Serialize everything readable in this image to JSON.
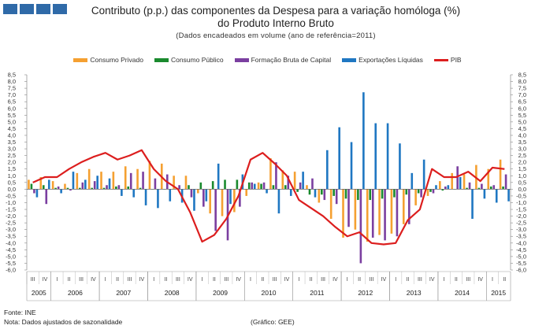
{
  "header": {
    "title_line1": "Contributo (p.p.) das componentes da Despesa para a variação homóloga (%)",
    "title_line2": "do Produto Interno Bruto",
    "subtitle": "(Dados encadeados em volume (ano de referência=2011)"
  },
  "footer": {
    "source": "Fonte:  INE",
    "note": "Nota: Dados ajustados de sazonalidade",
    "credit": "(Gráfico: GEE)"
  },
  "colors": {
    "logo": "#2f6aa8",
    "consumo_privado": "#f5a031",
    "consumo_publico": "#1a8a2e",
    "fbc": "#7b3fa0",
    "exportacoes": "#1f77c2",
    "pib": "#dc1e1e"
  },
  "chart_data": {
    "type": "bar",
    "title": "Contributo (p.p.) das componentes da Despesa para a variação homóloga (%) do Produto Interno Bruto",
    "ylim": [
      -6.0,
      8.5
    ],
    "ytick_step": 0.5,
    "legend_position": "top",
    "grid": false,
    "quarters": [
      "III",
      "IV",
      "I",
      "II",
      "III",
      "IV",
      "I",
      "II",
      "III",
      "IV",
      "I",
      "II",
      "III",
      "IV",
      "I",
      "II",
      "III",
      "IV",
      "I",
      "II",
      "III",
      "IV",
      "I",
      "II",
      "III",
      "IV",
      "I",
      "II",
      "III",
      "IV",
      "I",
      "II",
      "III",
      "IV",
      "I",
      "II",
      "III",
      "IV",
      "I",
      "II"
    ],
    "years": [
      {
        "label": "2005",
        "start": 0,
        "count": 2
      },
      {
        "label": "2006",
        "start": 2,
        "count": 4
      },
      {
        "label": "2007",
        "start": 6,
        "count": 4
      },
      {
        "label": "2008",
        "start": 10,
        "count": 4
      },
      {
        "label": "2009",
        "start": 14,
        "count": 4
      },
      {
        "label": "2010",
        "start": 18,
        "count": 4
      },
      {
        "label": "2011",
        "start": 22,
        "count": 4
      },
      {
        "label": "2012",
        "start": 26,
        "count": 4
      },
      {
        "label": "2013",
        "start": 30,
        "count": 4
      },
      {
        "label": "2014",
        "start": 34,
        "count": 4
      },
      {
        "label": "2015",
        "start": 38,
        "count": 2
      }
    ],
    "series": [
      {
        "name": "Consumo Privado",
        "type": "bar",
        "color": "#f5a031",
        "values": [
          0.7,
          0.9,
          0.6,
          0.4,
          1.2,
          1.5,
          1.3,
          1.3,
          1.7,
          1.5,
          2.1,
          1.9,
          1.0,
          1.0,
          -0.3,
          -1.8,
          -2.0,
          -1.7,
          -0.5,
          0.5,
          2.3,
          1.4,
          1.3,
          0.3,
          -1.0,
          -2.2,
          -3.6,
          -3.0,
          -3.9,
          -3.4,
          -3.3,
          -2.6,
          -1.2,
          -0.5,
          0.6,
          1.2,
          1.1,
          1.8,
          1.5,
          2.2
        ]
      },
      {
        "name": "Consumo Público",
        "type": "bar",
        "color": "#1a8a2e",
        "values": [
          0.4,
          0.3,
          0.1,
          0.1,
          0.1,
          0.1,
          0.1,
          0.2,
          0.2,
          0.1,
          0.0,
          0.0,
          0.1,
          0.3,
          0.5,
          0.6,
          0.7,
          0.7,
          0.5,
          0.4,
          0.3,
          0.3,
          -0.2,
          -0.4,
          -0.4,
          -0.5,
          -0.7,
          -0.8,
          -0.8,
          -0.7,
          -0.6,
          -0.4,
          -0.3,
          -0.2,
          -0.1,
          0.0,
          0.1,
          0.1,
          0.2,
          0.2
        ]
      },
      {
        "name": "Formação Bruta de Capital",
        "type": "bar",
        "color": "#7b3fa0",
        "values": [
          -0.3,
          -1.1,
          0.2,
          -0.1,
          0.5,
          0.6,
          0.3,
          0.3,
          1.2,
          1.3,
          0.8,
          1.1,
          0.3,
          -0.6,
          -1.3,
          -3.1,
          -3.8,
          -1.3,
          0.5,
          0.5,
          2.0,
          1.0,
          0.5,
          0.8,
          -0.8,
          -1.1,
          -2.8,
          -5.5,
          -3.6,
          -3.8,
          -3.5,
          -2.6,
          -0.6,
          -0.3,
          0.2,
          1.7,
          0.5,
          0.4,
          0.3,
          1.1
        ]
      },
      {
        "name": "Exportações Líquidas",
        "type": "bar",
        "color": "#1f77c2",
        "values": [
          -0.6,
          0.7,
          -0.3,
          1.3,
          0.7,
          1.0,
          0.8,
          -0.5,
          -0.6,
          -1.2,
          -1.4,
          -0.9,
          -1.0,
          -1.6,
          -0.9,
          1.9,
          -1.1,
          1.1,
          0.4,
          -0.3,
          -1.8,
          -0.5,
          1.3,
          -0.6,
          2.9,
          4.6,
          3.5,
          7.2,
          4.9,
          4.9,
          3.4,
          1.2,
          2.2,
          0.3,
          0.3,
          0.9,
          -2.2,
          -0.7,
          -1.0,
          -0.9
        ]
      },
      {
        "name": "PIB",
        "type": "line",
        "color": "#dc1e1e",
        "values": [
          0.5,
          0.9,
          0.9,
          1.5,
          2.0,
          2.4,
          2.7,
          2.2,
          2.5,
          2.9,
          1.5,
          0.6,
          0.0,
          -1.7,
          -3.9,
          -3.4,
          -2.2,
          -0.5,
          2.2,
          2.7,
          1.9,
          1.0,
          -0.8,
          -1.4,
          -2.0,
          -2.8,
          -3.5,
          -3.2,
          -4.0,
          -4.1,
          -4.0,
          -2.3,
          -1.5,
          1.5,
          0.9,
          0.9,
          1.3,
          0.6,
          1.6,
          1.5
        ]
      }
    ]
  }
}
